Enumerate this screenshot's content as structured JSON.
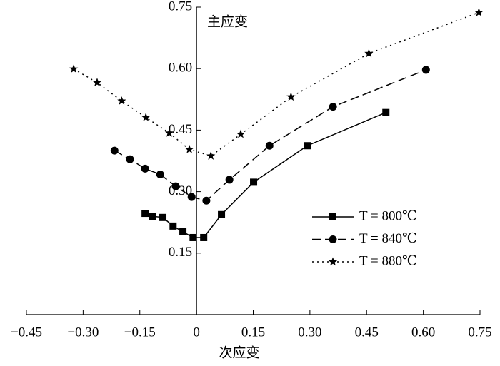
{
  "chart_data": {
    "type": "line",
    "xlabel": "次应变",
    "ylabel": "主应变",
    "xlim": [
      -0.45,
      0.75
    ],
    "ylim": [
      0,
      0.75
    ],
    "xticks": [
      {
        "value": -0.45,
        "label": "−0.45"
      },
      {
        "value": -0.3,
        "label": "−0.30"
      },
      {
        "value": -0.15,
        "label": "−0.15"
      },
      0,
      {
        "value": 0.15,
        "label": "0.15"
      },
      {
        "value": 0.3,
        "label": "0.30"
      },
      {
        "value": 0.45,
        "label": "0.45"
      },
      {
        "value": 0.6,
        "label": "0.60"
      },
      {
        "value": 0.75,
        "label": "0.75"
      }
    ],
    "yticks": [
      {
        "value": 0.15,
        "label": "0.15"
      },
      {
        "value": 0.3,
        "label": "0.30"
      },
      {
        "value": 0.45,
        "label": "0.45"
      },
      {
        "value": 0.6,
        "label": "0.60"
      },
      {
        "value": 0.75,
        "label": "0.75"
      }
    ],
    "legend": "lower right",
    "series": [
      {
        "name": "T = 800℃",
        "color": "#000000",
        "marker": "square",
        "line": "solid",
        "x": [
          -0.136,
          -0.117,
          -0.089,
          -0.062,
          -0.036,
          -0.009,
          0.019,
          0.066,
          0.151,
          0.293,
          0.501
        ],
        "values": [
          0.247,
          0.24,
          0.237,
          0.216,
          0.202,
          0.188,
          0.188,
          0.244,
          0.323,
          0.412,
          0.493
        ]
      },
      {
        "name": "T = 840℃",
        "color": "#000000",
        "marker": "circle",
        "line": "dashed",
        "x": [
          -0.217,
          -0.176,
          -0.136,
          -0.096,
          -0.055,
          -0.013,
          0.026,
          0.087,
          0.193,
          0.361,
          0.607
        ],
        "values": [
          0.4,
          0.379,
          0.356,
          0.342,
          0.313,
          0.287,
          0.278,
          0.329,
          0.412,
          0.507,
          0.597
        ]
      },
      {
        "name": "T = 880℃",
        "color": "#000000",
        "marker": "star",
        "line": "dotted",
        "x": [
          -0.325,
          -0.263,
          -0.198,
          -0.134,
          -0.072,
          -0.019,
          0.038,
          0.117,
          0.25,
          0.456,
          0.747
        ],
        "values": [
          0.599,
          0.566,
          0.521,
          0.481,
          0.443,
          0.403,
          0.387,
          0.44,
          0.531,
          0.637,
          0.737
        ]
      }
    ]
  }
}
